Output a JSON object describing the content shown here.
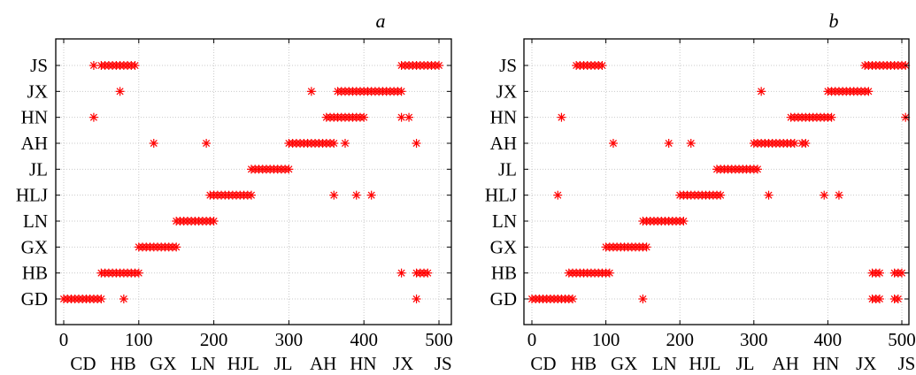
{
  "colors": {
    "mark": "#ff0000",
    "grid": "#c9c9c9",
    "axis": "#000000"
  },
  "chart_data": [
    {
      "type": "scatter",
      "panel_label": "a",
      "xlabel_categories": [
        "CD",
        "HB",
        "GX",
        "LN",
        "HJL",
        "JL",
        "AH",
        "HN",
        "JX",
        "JS"
      ],
      "x_ticks": [
        "0",
        "100",
        "200",
        "300",
        "400",
        "500"
      ],
      "xlim": [
        0,
        500
      ],
      "y_categories": [
        "GD",
        "HB",
        "GX",
        "LN",
        "HLJ",
        "JL",
        "AH",
        "JX",
        "HN",
        "JS"
      ],
      "y_order_top_to_bottom": [
        "JS",
        "JX",
        "HN",
        "AH",
        "JL",
        "HLJ",
        "LN",
        "GX",
        "HB",
        "GD"
      ],
      "grid": true,
      "marker": "asterisk",
      "series": [
        {
          "y": "GD",
          "x": [
            0,
            5,
            10,
            15,
            20,
            25,
            30,
            35,
            40,
            45,
            50,
            80,
            470
          ]
        },
        {
          "y": "HB",
          "x": [
            50,
            55,
            60,
            65,
            70,
            75,
            80,
            85,
            90,
            95,
            100,
            450,
            470,
            475,
            480,
            485
          ]
        },
        {
          "y": "GX",
          "x": [
            100,
            105,
            110,
            115,
            120,
            125,
            130,
            135,
            140,
            145,
            150
          ]
        },
        {
          "y": "LN",
          "x": [
            150,
            155,
            160,
            165,
            170,
            175,
            180,
            185,
            190,
            195,
            200
          ]
        },
        {
          "y": "HLJ",
          "x": [
            195,
            200,
            205,
            210,
            215,
            220,
            225,
            230,
            235,
            240,
            245,
            250,
            360,
            390,
            410
          ]
        },
        {
          "y": "JL",
          "x": [
            250,
            255,
            260,
            265,
            270,
            275,
            280,
            285,
            290,
            295,
            300
          ]
        },
        {
          "y": "AH",
          "x": [
            120,
            190,
            300,
            305,
            310,
            315,
            320,
            325,
            330,
            335,
            340,
            345,
            350,
            355,
            360,
            375,
            470
          ]
        },
        {
          "y": "HN",
          "x": [
            40,
            350,
            355,
            360,
            365,
            370,
            375,
            380,
            385,
            390,
            395,
            400,
            450,
            460
          ]
        },
        {
          "y": "JX",
          "x": [
            75,
            330,
            365,
            370,
            375,
            380,
            385,
            390,
            395,
            400,
            405,
            410,
            415,
            420,
            425,
            430,
            435,
            440,
            445,
            450
          ]
        },
        {
          "y": "JS",
          "x": [
            40,
            50,
            55,
            60,
            65,
            70,
            75,
            80,
            85,
            90,
            95,
            450,
            455,
            460,
            465,
            470,
            475,
            480,
            485,
            490,
            495,
            500
          ]
        }
      ]
    },
    {
      "type": "scatter",
      "panel_label": "b",
      "xlabel_categories": [
        "CD",
        "HB",
        "GX",
        "LN",
        "HJL",
        "JL",
        "AH",
        "HN",
        "JX",
        "JS"
      ],
      "x_ticks": [
        "0",
        "100",
        "200",
        "300",
        "400",
        "500"
      ],
      "xlim": [
        0,
        500
      ],
      "y_categories": [
        "GD",
        "HB",
        "GX",
        "LN",
        "HLJ",
        "JL",
        "AH",
        "HN",
        "JX",
        "JS"
      ],
      "y_order_top_to_bottom": [
        "JS",
        "JX",
        "HN",
        "AH",
        "JL",
        "HLJ",
        "LN",
        "GX",
        "HB",
        "GD"
      ],
      "grid": true,
      "marker": "asterisk",
      "series": [
        {
          "y": "GD",
          "x": [
            0,
            5,
            10,
            15,
            20,
            25,
            30,
            35,
            40,
            45,
            50,
            55,
            150,
            460,
            465,
            470,
            490,
            495
          ]
        },
        {
          "y": "HB",
          "x": [
            50,
            55,
            60,
            65,
            70,
            75,
            80,
            85,
            90,
            95,
            100,
            105,
            460,
            465,
            470,
            490,
            495,
            500
          ]
        },
        {
          "y": "GX",
          "x": [
            100,
            105,
            110,
            115,
            120,
            125,
            130,
            135,
            140,
            145,
            150,
            155
          ]
        },
        {
          "y": "LN",
          "x": [
            150,
            155,
            160,
            165,
            170,
            175,
            180,
            185,
            190,
            195,
            200,
            205
          ]
        },
        {
          "y": "HLJ",
          "x": [
            35,
            200,
            205,
            210,
            215,
            220,
            225,
            230,
            235,
            240,
            245,
            250,
            255,
            320,
            395,
            415
          ]
        },
        {
          "y": "JL",
          "x": [
            250,
            255,
            260,
            265,
            270,
            275,
            280,
            285,
            290,
            295,
            300,
            305
          ]
        },
        {
          "y": "AH",
          "x": [
            110,
            185,
            215,
            300,
            305,
            310,
            315,
            320,
            325,
            330,
            335,
            340,
            345,
            350,
            355,
            365,
            370
          ]
        },
        {
          "y": "HN",
          "x": [
            40,
            350,
            355,
            360,
            365,
            370,
            375,
            380,
            385,
            390,
            395,
            400,
            405,
            505
          ]
        },
        {
          "y": "JX",
          "x": [
            310,
            400,
            405,
            410,
            415,
            420,
            425,
            430,
            435,
            440,
            445,
            450,
            455
          ]
        },
        {
          "y": "JS",
          "x": [
            60,
            65,
            70,
            75,
            80,
            85,
            90,
            95,
            450,
            455,
            460,
            465,
            470,
            475,
            480,
            485,
            490,
            495,
            500,
            505
          ]
        }
      ]
    }
  ]
}
